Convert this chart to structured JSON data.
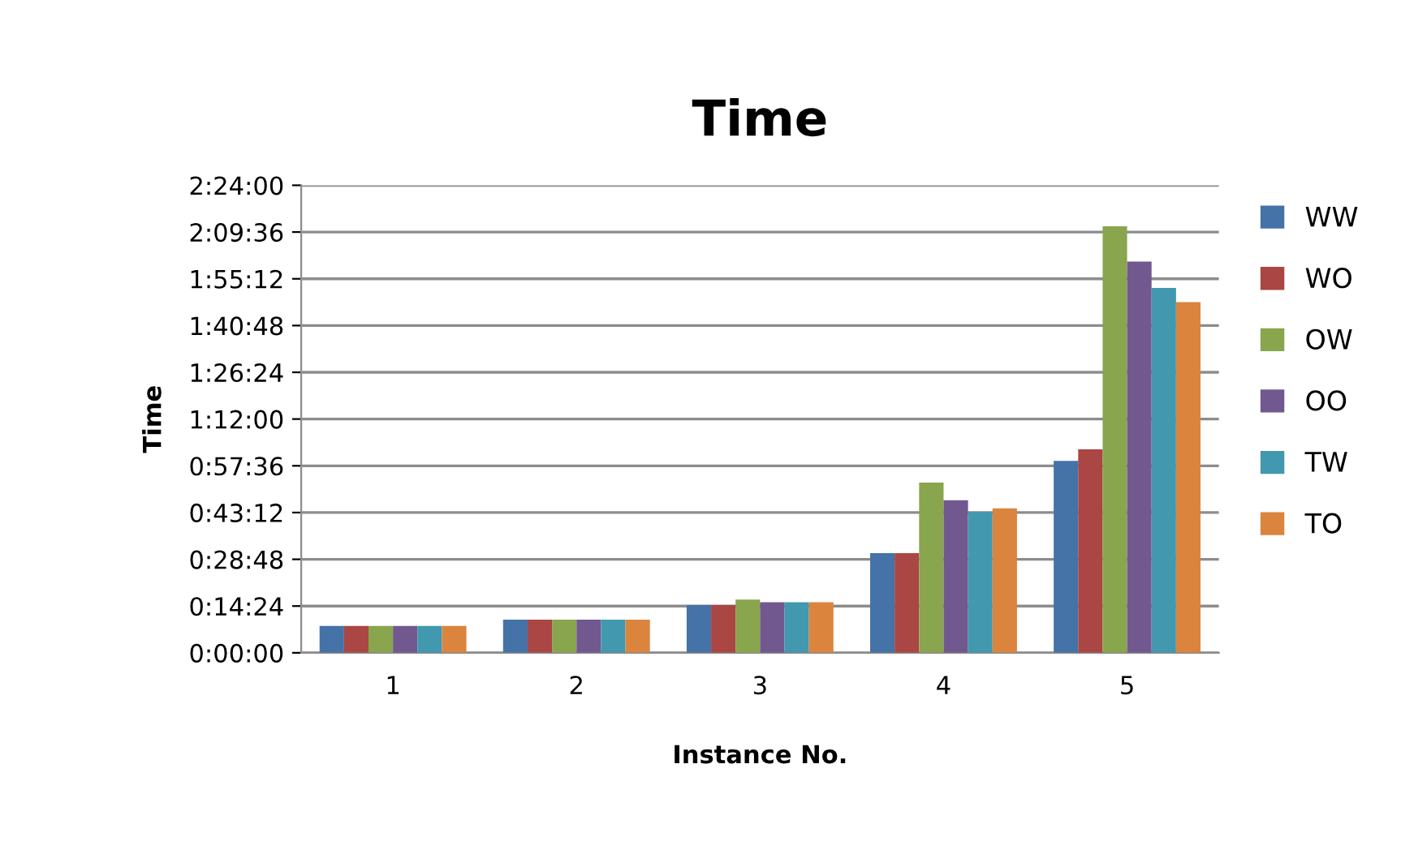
{
  "chart_data": {
    "type": "bar",
    "title": "Time",
    "xlabel": "Instance No.",
    "ylabel": "Time",
    "categories": [
      "1",
      "2",
      "3",
      "4",
      "5"
    ],
    "series": [
      {
        "name": "WW",
        "color": "#4572a7",
        "values": [
          8.3,
          10.2,
          14.7,
          30.7,
          59.1
        ]
      },
      {
        "name": "WO",
        "color": "#aa4643",
        "values": [
          8.3,
          10.2,
          14.7,
          30.7,
          62.7
        ]
      },
      {
        "name": "OW",
        "color": "#89a54e",
        "values": [
          8.3,
          10.2,
          16.4,
          52.4,
          131.4
        ]
      },
      {
        "name": "OO",
        "color": "#71588f",
        "values": [
          8.3,
          10.2,
          15.6,
          47.0,
          120.5
        ]
      },
      {
        "name": "TW",
        "color": "#4198af",
        "values": [
          8.3,
          10.2,
          15.6,
          43.4,
          112.4
        ]
      },
      {
        "name": "TO",
        "color": "#db843d",
        "values": [
          8.3,
          10.2,
          15.6,
          44.5,
          108.0
        ]
      }
    ],
    "ylim": [
      0,
      144
    ],
    "yticks": [
      {
        "value": 0,
        "label": "0:00:00"
      },
      {
        "value": 14.4,
        "label": "0:14:24"
      },
      {
        "value": 28.8,
        "label": "0:28:48"
      },
      {
        "value": 43.2,
        "label": "0:43:12"
      },
      {
        "value": 57.6,
        "label": "0:57:36"
      },
      {
        "value": 72,
        "label": "1:12:00"
      },
      {
        "value": 86.4,
        "label": "1:26:24"
      },
      {
        "value": 100.8,
        "label": "1:40:48"
      },
      {
        "value": 115.2,
        "label": "1:55:12"
      },
      {
        "value": 129.6,
        "label": "2:09:36"
      },
      {
        "value": 144,
        "label": "2:24:00"
      }
    ],
    "grid": "y",
    "legend": "right"
  }
}
